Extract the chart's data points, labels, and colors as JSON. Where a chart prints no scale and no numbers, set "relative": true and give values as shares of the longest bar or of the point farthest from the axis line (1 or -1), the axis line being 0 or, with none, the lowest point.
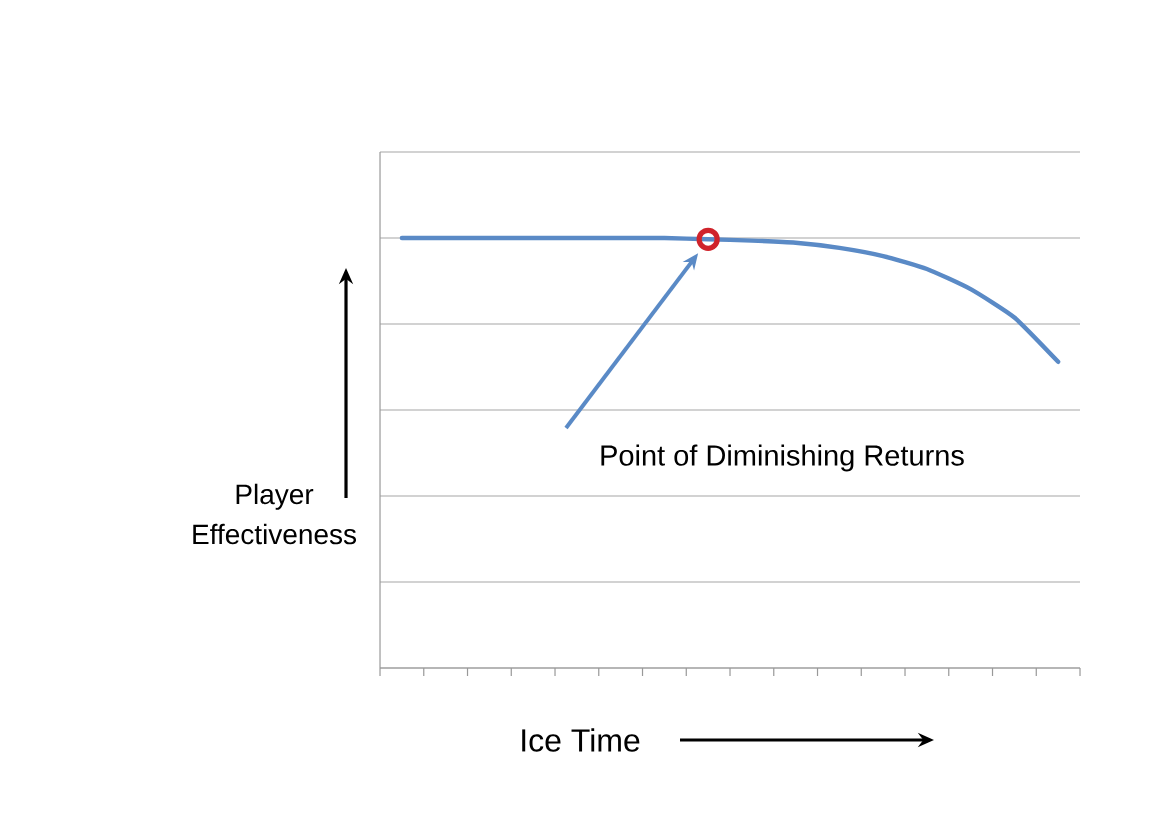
{
  "chart_data": {
    "type": "line",
    "relative": true,
    "grid": "y",
    "xlabel": "Ice Time",
    "ylabel": "Player Effectiveness",
    "categories": [
      null,
      null,
      null,
      null,
      null,
      null,
      null,
      null,
      null,
      null,
      null,
      null,
      null,
      null,
      null,
      null
    ],
    "series": [
      {
        "color": "#5a8ac6",
        "marker": "none",
        "values": [
          1.0,
          1.0,
          1.0,
          1.0,
          1.0,
          1.0,
          1.0,
          0.997,
          0.994,
          0.989,
          0.977,
          0.958,
          0.928,
          0.881,
          0.815,
          0.712
        ]
      }
    ],
    "annotations": [
      "Point of Diminishing Returns"
    ],
    "tick_labels": false
  }
}
